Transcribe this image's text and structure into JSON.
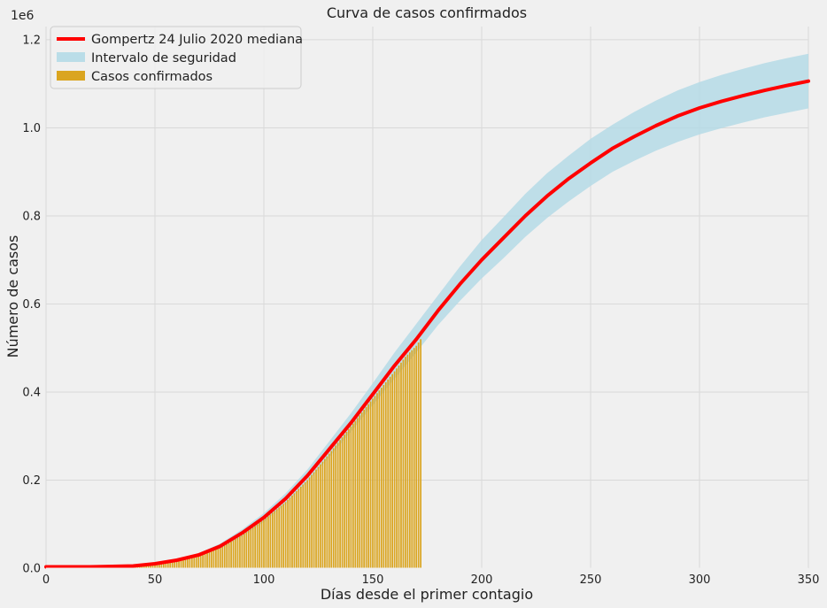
{
  "chart_data": {
    "type": "line",
    "title": "Curva de casos confirmados",
    "xlabel": "Días desde el primer contagio",
    "ylabel": "Número de casos",
    "y_offset_label": "1e6",
    "xlim": [
      0,
      350
    ],
    "ylim": [
      0,
      1.23
    ],
    "grid": true,
    "legend_position": "top-left",
    "x_ticks": [
      0,
      50,
      100,
      150,
      200,
      250,
      300,
      350
    ],
    "y_ticks": [
      0.0,
      0.2,
      0.4,
      0.6,
      0.8,
      1.0,
      1.2
    ],
    "x_tick_labels": [
      "0",
      "50",
      "100",
      "150",
      "200",
      "250",
      "300",
      "350"
    ],
    "y_tick_labels": [
      "0.0",
      "0.2",
      "0.4",
      "0.6",
      "0.8",
      "1.0",
      "1.2"
    ],
    "series": [
      {
        "name": "Gompertz 24 Julio 2020 mediana",
        "kind": "line",
        "color": "#ff0000",
        "x": [
          0,
          20,
          40,
          50,
          60,
          70,
          80,
          90,
          100,
          110,
          120,
          130,
          140,
          150,
          160,
          170,
          180,
          190,
          200,
          210,
          220,
          230,
          240,
          250,
          260,
          270,
          280,
          290,
          300,
          310,
          320,
          330,
          340,
          350
        ],
        "y": [
          0.003,
          0.003,
          0.005,
          0.01,
          0.018,
          0.03,
          0.05,
          0.08,
          0.115,
          0.158,
          0.21,
          0.27,
          0.33,
          0.395,
          0.46,
          0.52,
          0.585,
          0.645,
          0.7,
          0.75,
          0.8,
          0.845,
          0.885,
          0.92,
          0.953,
          0.98,
          1.005,
          1.027,
          1.045,
          1.06,
          1.073,
          1.085,
          1.096,
          1.106
        ]
      },
      {
        "name": "Intervalo de seguridad",
        "kind": "band",
        "color": "#add8e6",
        "x": [
          0,
          20,
          40,
          50,
          60,
          70,
          80,
          90,
          100,
          110,
          120,
          130,
          140,
          150,
          160,
          170,
          180,
          190,
          200,
          210,
          220,
          230,
          240,
          250,
          260,
          270,
          280,
          290,
          300,
          310,
          320,
          330,
          340,
          350
        ],
        "lower": [
          0.002,
          0.002,
          0.004,
          0.008,
          0.015,
          0.026,
          0.044,
          0.072,
          0.105,
          0.146,
          0.196,
          0.252,
          0.31,
          0.37,
          0.43,
          0.49,
          0.552,
          0.607,
          0.658,
          0.704,
          0.752,
          0.795,
          0.833,
          0.868,
          0.9,
          0.925,
          0.948,
          0.968,
          0.985,
          0.999,
          1.012,
          1.024,
          1.034,
          1.044
        ],
        "upper": [
          0.004,
          0.004,
          0.006,
          0.012,
          0.021,
          0.034,
          0.056,
          0.088,
          0.125,
          0.17,
          0.224,
          0.288,
          0.352,
          0.42,
          0.49,
          0.555,
          0.62,
          0.685,
          0.745,
          0.797,
          0.85,
          0.897,
          0.937,
          0.975,
          1.007,
          1.036,
          1.062,
          1.085,
          1.104,
          1.12,
          1.134,
          1.147,
          1.158,
          1.168
        ]
      },
      {
        "name": "Casos confirmados",
        "kind": "bar",
        "color": "#daa520",
        "x_range": [
          0,
          172
        ],
        "x": [
          0,
          20,
          40,
          50,
          60,
          70,
          80,
          90,
          100,
          110,
          120,
          130,
          140,
          150,
          160,
          165,
          170,
          172
        ],
        "y": [
          0.001,
          0.002,
          0.004,
          0.008,
          0.015,
          0.027,
          0.046,
          0.075,
          0.11,
          0.15,
          0.2,
          0.26,
          0.322,
          0.385,
          0.447,
          0.48,
          0.505,
          0.52
        ]
      }
    ]
  }
}
